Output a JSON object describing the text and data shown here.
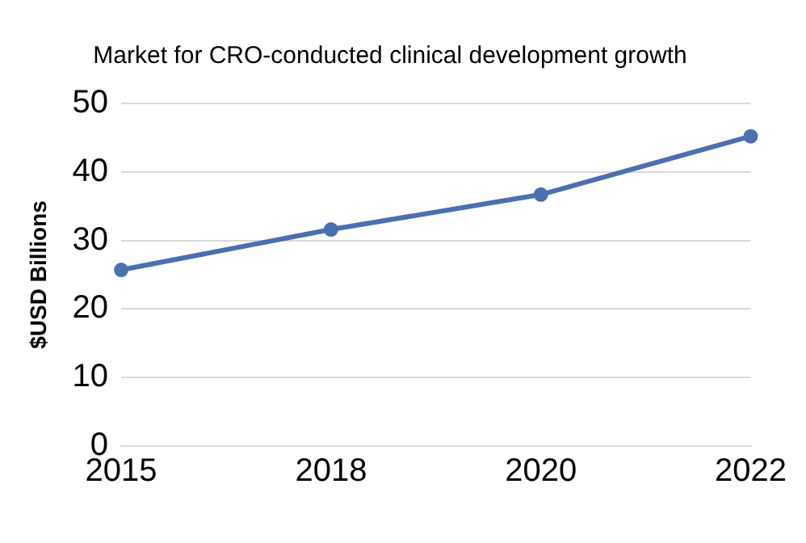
{
  "chart_data": {
    "type": "line",
    "title": "Market for CRO-conducted clinical development growth",
    "ylabel": "$USD Billions",
    "categories": [
      "2015",
      "2018",
      "2020",
      "2022"
    ],
    "series": [
      {
        "color": "#4a70b0",
        "values": [
          25.7,
          31.6,
          36.7,
          45.2
        ]
      }
    ],
    "ylim": [
      0,
      50
    ],
    "yticks": [
      0,
      10,
      20,
      30,
      40,
      50
    ],
    "grid": "y",
    "legend": false,
    "marker": "circle",
    "line_style": "solid"
  }
}
